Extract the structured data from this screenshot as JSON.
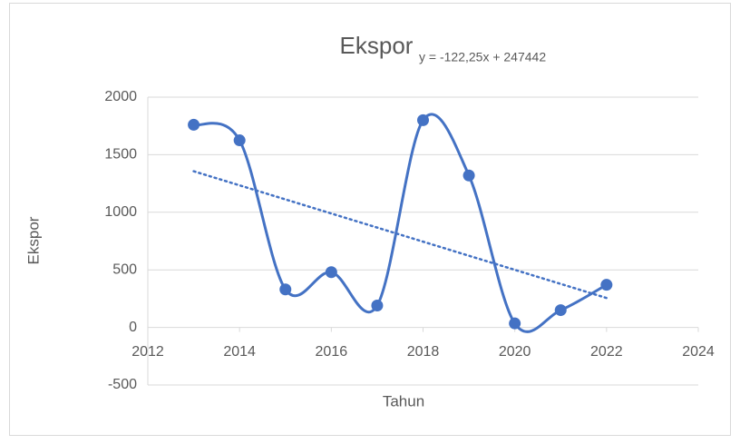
{
  "chart_data": {
    "type": "scatter-smooth",
    "title": "Ekspor",
    "trendline_label": "y = -122,25x + 247442",
    "x_label": "Tahun",
    "y_label": "Ekspor",
    "series": [
      {
        "name": "Ekspor",
        "color": "#4472c4",
        "x": [
          2013,
          2014,
          2015,
          2016,
          2017,
          2018,
          2019,
          2020,
          2021,
          2022
        ],
        "values": [
          1760,
          1625,
          330,
          480,
          190,
          1800,
          1320,
          35,
          150,
          370
        ]
      }
    ],
    "trendline": "linear",
    "xlim": [
      2012,
      2024
    ],
    "xticks": [
      2012,
      2014,
      2016,
      2018,
      2020,
      2022,
      2024
    ],
    "ylim": [
      -500,
      2000
    ],
    "yticks": [
      -500,
      0,
      500,
      1000,
      1500,
      2000
    ],
    "grid": true
  }
}
